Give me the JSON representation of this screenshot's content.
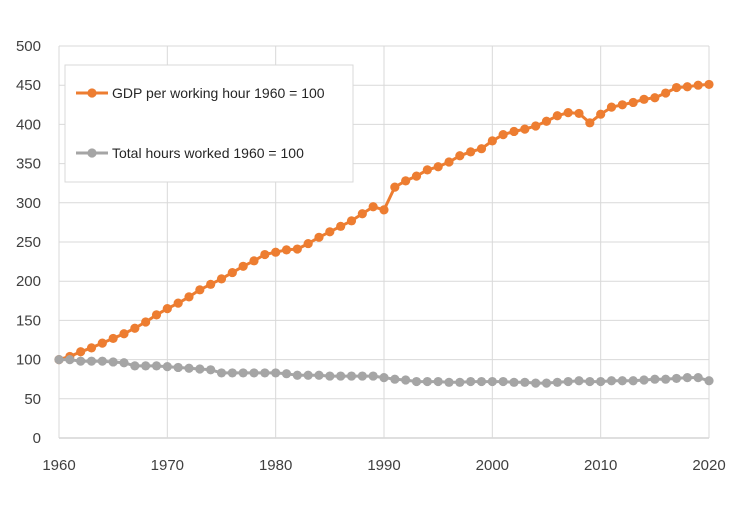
{
  "chart_data": {
    "type": "line",
    "title": "",
    "xlabel": "",
    "ylabel": "",
    "xlim": [
      1960,
      2020
    ],
    "ylim": [
      0,
      500
    ],
    "x_ticks": [
      "1960",
      "1970",
      "1980",
      "1990",
      "2000",
      "2010",
      "2020"
    ],
    "y_ticks": [
      "0",
      "50",
      "100",
      "150",
      "200",
      "250",
      "300",
      "350",
      "400",
      "450",
      "500"
    ],
    "grid": true,
    "legend_position": "top-left",
    "x": [
      1960,
      1961,
      1962,
      1963,
      1964,
      1965,
      1966,
      1967,
      1968,
      1969,
      1970,
      1971,
      1972,
      1973,
      1974,
      1975,
      1976,
      1977,
      1978,
      1979,
      1980,
      1981,
      1982,
      1983,
      1984,
      1985,
      1986,
      1987,
      1988,
      1989,
      1990,
      1991,
      1992,
      1993,
      1994,
      1995,
      1996,
      1997,
      1998,
      1999,
      2000,
      2001,
      2002,
      2003,
      2004,
      2005,
      2006,
      2007,
      2008,
      2009,
      2010,
      2011,
      2012,
      2013,
      2014,
      2015,
      2016,
      2017,
      2018,
      2019,
      2020
    ],
    "series": [
      {
        "name": "GDP per working hour 1960 = 100",
        "color": "#ED7D31",
        "values": [
          100,
          104,
          110,
          115,
          121,
          127,
          133,
          140,
          148,
          157,
          165,
          172,
          180,
          189,
          196,
          203,
          211,
          219,
          226,
          234,
          237,
          240,
          241,
          248,
          256,
          263,
          270,
          277,
          286,
          295,
          291,
          320,
          328,
          334,
          342,
          346,
          352,
          360,
          365,
          369,
          379,
          387,
          391,
          394,
          398,
          404,
          411,
          415,
          414,
          402,
          413,
          422,
          425,
          428,
          432,
          434,
          440,
          447,
          448,
          450,
          451
        ]
      },
      {
        "name": "Total hours worked 1960 = 100",
        "color": "#A5A5A5",
        "values": [
          100,
          100,
          98,
          98,
          98,
          97,
          96,
          92,
          92,
          92,
          91,
          90,
          89,
          88,
          87,
          83,
          83,
          83,
          83,
          83,
          83,
          82,
          80,
          80,
          80,
          79,
          79,
          79,
          79,
          79,
          77,
          75,
          74,
          72,
          72,
          72,
          71,
          71,
          72,
          72,
          72,
          72,
          71,
          71,
          70,
          70,
          71,
          72,
          73,
          72,
          72,
          73,
          73,
          73,
          74,
          75,
          75,
          76,
          77,
          77,
          73
        ]
      }
    ]
  }
}
